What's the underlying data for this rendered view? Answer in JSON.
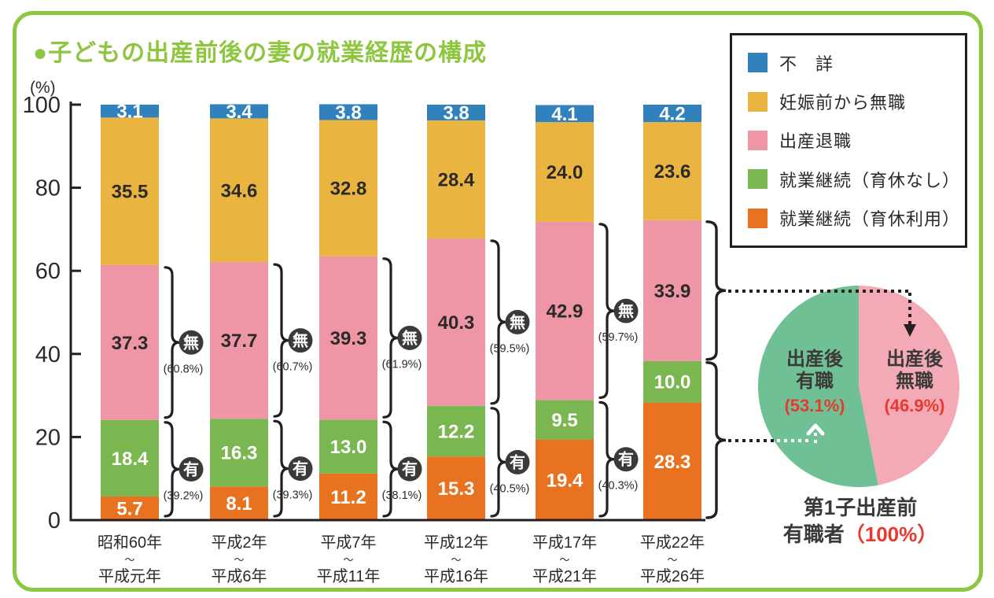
{
  "title": "●子どもの出産前後の妻の就業経歴の構成",
  "colors": {
    "frame_green": "#8dc63f",
    "text_dark": "#2b2a28",
    "axis_black": "#231f20",
    "badge_dark": "#3b3a38",
    "accent_red": "#e8392f",
    "white": "#ffffff"
  },
  "legend": {
    "items": [
      {
        "label": "不　詳",
        "color": "#3181bd"
      },
      {
        "label": "妊娠前から無職",
        "color": "#e9b440"
      },
      {
        "label": "出産退職",
        "color": "#ee96a6"
      },
      {
        "label": "就業継続（育休なし）",
        "color": "#7bb750"
      },
      {
        "label": "就業継続（育休利用）",
        "color": "#e8721f"
      }
    ]
  },
  "chart_data": [
    {
      "type": "bar",
      "stacked": true,
      "title": "子どもの出産前後の妻の就業経歴の構成",
      "ylabel": "(%)",
      "xlabel": "",
      "ylim": [
        0,
        100
      ],
      "yticks": [
        0,
        20,
        40,
        60,
        80,
        100
      ],
      "grid": false,
      "legend_position": "top-right",
      "categories": [
        {
          "line1": "昭和60年",
          "sep": "〜",
          "line2": "平成元年"
        },
        {
          "line1": "平成2年",
          "sep": "〜",
          "line2": "平成6年"
        },
        {
          "line1": "平成7年",
          "sep": "〜",
          "line2": "平成11年"
        },
        {
          "line1": "平成12年",
          "sep": "〜",
          "line2": "平成16年"
        },
        {
          "line1": "平成17年",
          "sep": "〜",
          "line2": "平成21年"
        },
        {
          "line1": "平成22年",
          "sep": "〜",
          "line2": "平成26年"
        }
      ],
      "series": [
        {
          "name": "就業継続（育休利用）",
          "color": "#e8721f",
          "label_color": "#ffffff",
          "values": [
            5.7,
            8.1,
            11.2,
            15.3,
            19.4,
            28.3
          ]
        },
        {
          "name": "就業継続（育休なし）",
          "color": "#7bb750",
          "label_color": "#ffffff",
          "values": [
            18.4,
            16.3,
            13.0,
            12.2,
            9.5,
            10.0
          ]
        },
        {
          "name": "出産退職",
          "color": "#ee96a6",
          "label_color": "#2b2a28",
          "values": [
            37.3,
            37.7,
            39.3,
            40.3,
            42.9,
            33.9
          ]
        },
        {
          "name": "妊娠前から無職",
          "color": "#e9b440",
          "label_color": "#2b2a28",
          "values": [
            35.5,
            34.6,
            32.8,
            28.4,
            24.0,
            23.6
          ]
        },
        {
          "name": "不詳",
          "color": "#3181bd",
          "label_color": "#ffffff",
          "values": [
            3.1,
            3.4,
            3.8,
            3.8,
            4.1,
            4.2
          ]
        }
      ],
      "brace_annotations": {
        "mu_char": "無",
        "yu_char": "有",
        "mu_pct": [
          "(60.8%)",
          "(60.7%)",
          "(61.9%)",
          "(59.5%)",
          "(59.7%)",
          null
        ],
        "yu_pct": [
          "(39.2%)",
          "(39.3%)",
          "(38.1%)",
          "(40.5%)",
          "(40.3%)",
          null
        ]
      }
    },
    {
      "type": "pie",
      "start": "top",
      "direction": "clockwise",
      "slices": [
        {
          "label_line1": "出産後",
          "label_line2": "無職",
          "pct_label": "(46.9%)",
          "value": 46.9,
          "color": "#f3aab6"
        },
        {
          "label_line1": "出産後",
          "label_line2": "有職",
          "pct_label": "(53.1%)",
          "value": 53.1,
          "color": "#6fc095"
        }
      ],
      "caption": {
        "line1": "第1子出産前",
        "line2_dark": "有職者",
        "line2_red": "（100%）"
      }
    }
  ]
}
